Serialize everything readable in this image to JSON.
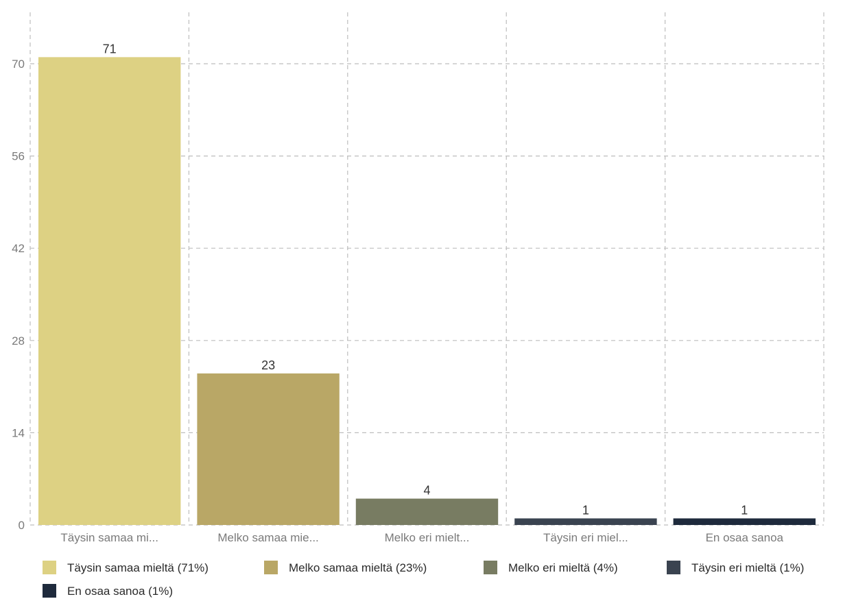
{
  "chart_data": {
    "type": "bar",
    "title": "",
    "xlabel": "",
    "ylabel": "",
    "categories": [
      "Täysin samaa mi...",
      "Melko samaa mie...",
      "Melko eri mielt...",
      "Täysin eri miel...",
      "En osaa sanoa"
    ],
    "values": [
      71,
      23,
      4,
      1,
      1
    ],
    "data_labels": [
      "71",
      "23",
      "4",
      "1",
      "1"
    ],
    "colors": [
      "#ddd183",
      "#b9a766",
      "#787c62",
      "#3a4350",
      "#1e2a3c"
    ],
    "ylim": [
      0,
      77
    ],
    "yticks": [
      0,
      14,
      28,
      42,
      56,
      70
    ],
    "grid": true,
    "legend_placement": "bottom",
    "legend": [
      {
        "label": "Täysin samaa mieltä (71%)",
        "color": "#ddd183"
      },
      {
        "label": "Melko samaa mieltä (23%)",
        "color": "#b9a766"
      },
      {
        "label": "Melko eri mieltä (4%)",
        "color": "#787c62"
      },
      {
        "label": "Täysin eri mieltä (1%)",
        "color": "#3a4350"
      },
      {
        "label": "En osaa sanoa (1%)",
        "color": "#1e2a3c"
      }
    ]
  }
}
